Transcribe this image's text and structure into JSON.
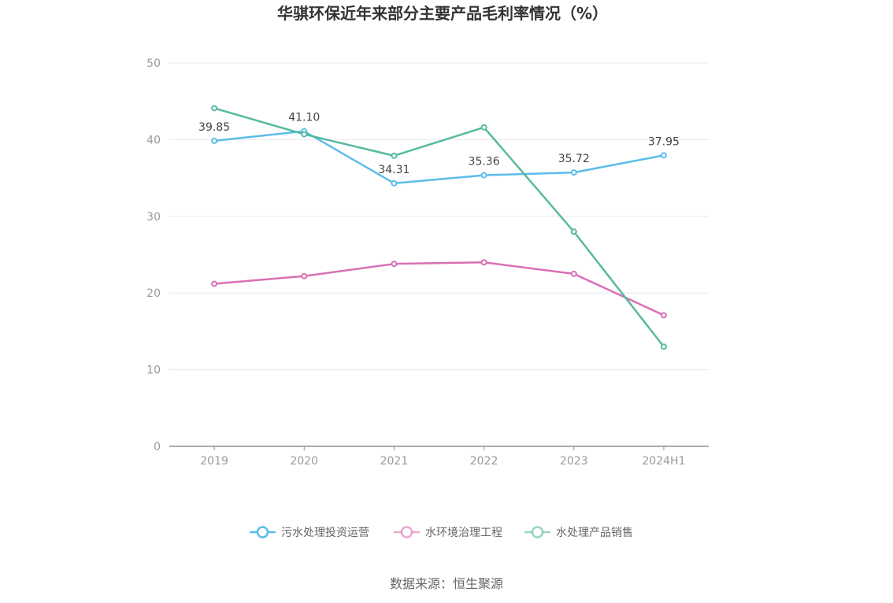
{
  "chart_data": {
    "type": "line",
    "title": "华骐环保近年来部分主要产品毛利率情况（%）",
    "categories": [
      "2019",
      "2020",
      "2021",
      "2022",
      "2023",
      "2024H1"
    ],
    "ylim": [
      0,
      50
    ],
    "yticks": [
      "0",
      "10",
      "20",
      "30",
      "40",
      "50"
    ],
    "grid": true,
    "legend_position": "bottom",
    "series": [
      {
        "name": "污水处理投资运营",
        "color": "#5bbde9",
        "values": [
          39.85,
          41.1,
          34.31,
          35.36,
          35.72,
          37.95
        ],
        "labels": [
          "39.85",
          "41.10",
          "34.31",
          "35.36",
          "35.72",
          "37.95"
        ]
      },
      {
        "name": "水环境治理工程",
        "color": "#d96fb5",
        "values": [
          21.2,
          22.2,
          23.8,
          24.0,
          22.5,
          17.1
        ]
      },
      {
        "name": "水处理产品销售",
        "color": "#57b9a0",
        "values": [
          44.1,
          40.7,
          37.9,
          41.6,
          28.0,
          13.0
        ]
      }
    ],
    "source": "数据来源：恒生聚源"
  }
}
